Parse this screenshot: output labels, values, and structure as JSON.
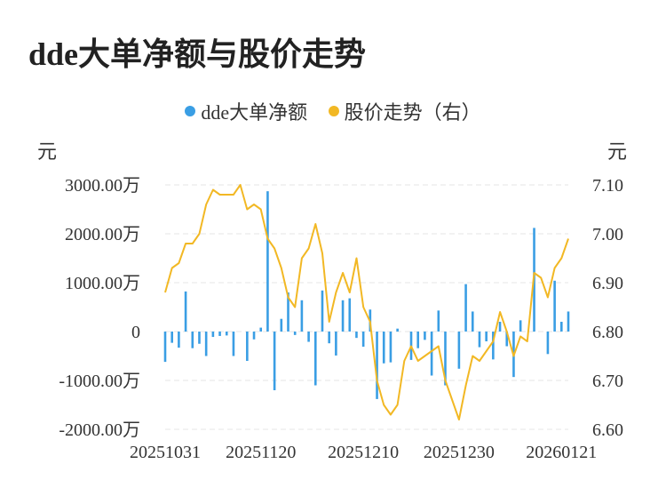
{
  "title": "dde大单净额与股价走势",
  "legend": [
    {
      "name": "dde大单净额",
      "color": "#3a9ee4"
    },
    {
      "name": "股价走势（右）",
      "color": "#f2b824"
    }
  ],
  "left_unit": "元",
  "right_unit": "元",
  "chart_data": {
    "type": "bar+line",
    "title": "dde大单净额与股价走势",
    "x_ticks": [
      "20251031",
      "20251120",
      "20251210",
      "20251230",
      "20260121"
    ],
    "y_left_ticks": [
      "3000.00万",
      "2000.00万",
      "1000.00万",
      "0",
      "-1000.00万",
      "-2000.00万"
    ],
    "y_left_values": [
      3000,
      2000,
      1000,
      0,
      -1000,
      -2000
    ],
    "y_right_ticks": [
      "7.10",
      "7.00",
      "6.90",
      "6.80",
      "6.70",
      "6.60"
    ],
    "y_right_values": [
      7.1,
      7.0,
      6.9,
      6.8,
      6.7,
      6.6
    ],
    "y_left_range": [
      -2000,
      3000
    ],
    "y_right_range": [
      6.6,
      7.1
    ],
    "grid": true,
    "series": [
      {
        "name": "dde大单净额",
        "type": "bar",
        "axis": "left",
        "color": "#3a9ee4",
        "values": [
          -620,
          -230,
          -330,
          820,
          -340,
          -250,
          -500,
          -110,
          -90,
          -80,
          -500,
          0,
          -600,
          -160,
          80,
          2870,
          -1200,
          260,
          800,
          -70,
          640,
          -210,
          -1100,
          840,
          -240,
          -490,
          640,
          680,
          -130,
          -310,
          450,
          -1380,
          -650,
          -630,
          60,
          0,
          -580,
          -340,
          -170,
          -900,
          430,
          -1100,
          0,
          -760,
          970,
          410,
          -320,
          -200,
          -570,
          200,
          -300,
          -930,
          230,
          0,
          2120,
          0,
          -460,
          1040,
          200,
          410
        ]
      },
      {
        "name": "股价走势（右）",
        "type": "line",
        "axis": "right",
        "color": "#f2b824",
        "values": [
          6.88,
          6.93,
          6.94,
          6.98,
          6.98,
          7.0,
          7.06,
          7.09,
          7.08,
          7.08,
          7.08,
          7.1,
          7.05,
          7.06,
          7.05,
          6.99,
          6.97,
          6.93,
          6.87,
          6.85,
          6.95,
          6.97,
          7.02,
          6.96,
          6.82,
          6.88,
          6.92,
          6.88,
          6.95,
          6.85,
          6.82,
          6.7,
          6.65,
          6.63,
          6.65,
          6.74,
          6.77,
          6.74,
          6.75,
          6.76,
          6.77,
          6.7,
          6.66,
          6.62,
          6.69,
          6.75,
          6.74,
          6.76,
          6.78,
          6.84,
          6.8,
          6.75,
          6.79,
          6.78,
          6.92,
          6.91,
          6.87,
          6.93,
          6.95,
          6.99
        ]
      }
    ]
  }
}
